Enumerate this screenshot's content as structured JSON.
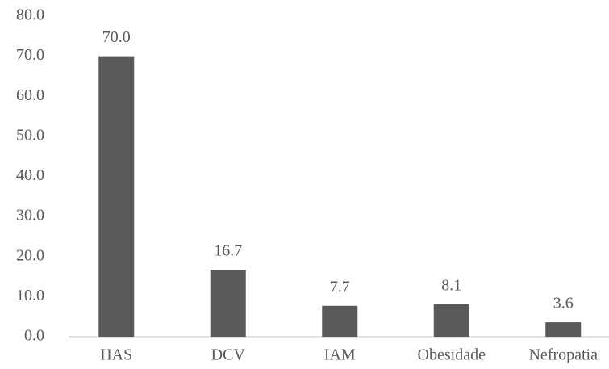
{
  "chart_data": {
    "type": "bar",
    "categories": [
      "HAS",
      "DCV",
      "IAM",
      "Obesidade",
      "Nefropatia"
    ],
    "values": [
      70.0,
      16.7,
      7.7,
      8.1,
      3.6
    ],
    "value_labels": [
      "70.0",
      "16.7",
      "7.7",
      "8.1",
      "3.6"
    ],
    "color": "#595959",
    "ylim": [
      0,
      80
    ],
    "yticks": [
      {
        "value": 0,
        "label": "0.0"
      },
      {
        "value": 10,
        "label": "10.0"
      },
      {
        "value": 20,
        "label": "20.0"
      },
      {
        "value": 30,
        "label": "30.0"
      },
      {
        "value": 40,
        "label": "40.0"
      },
      {
        "value": 50,
        "label": "50.0"
      },
      {
        "value": 60,
        "label": "60.0"
      },
      {
        "value": 70,
        "label": "70.0"
      },
      {
        "value": 80,
        "label": "80.0"
      }
    ],
    "grid": false
  }
}
